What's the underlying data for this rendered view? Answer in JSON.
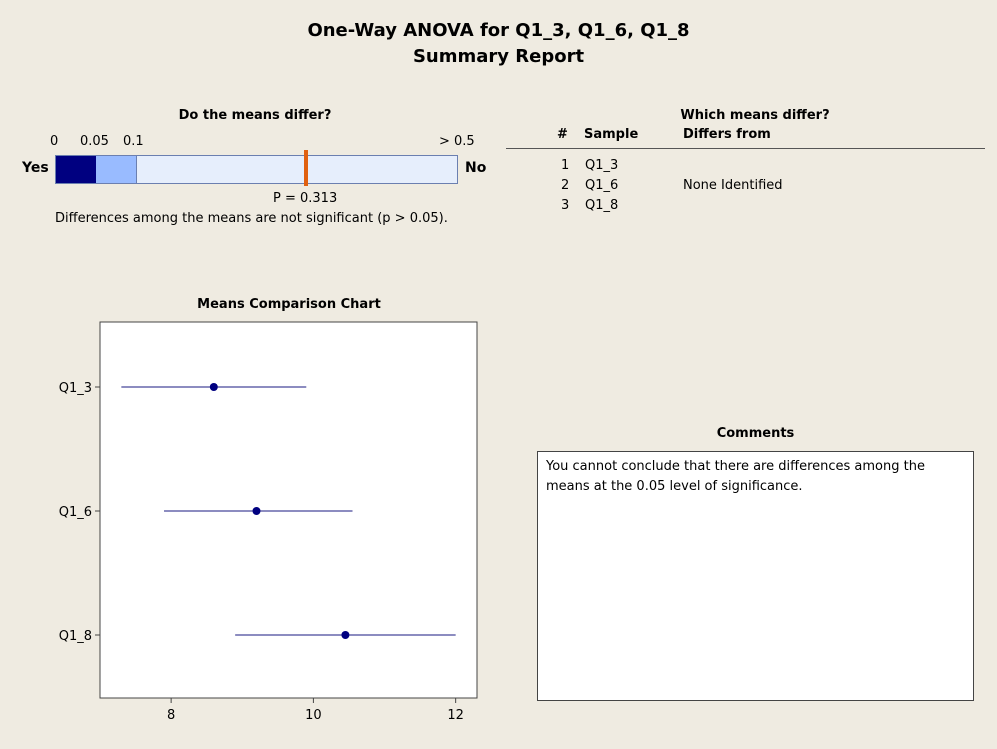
{
  "title": {
    "line1": "One-Way ANOVA for Q1_3, Q1_6, Q1_8",
    "line2": "Summary Report"
  },
  "means_differ": {
    "heading": "Do the means differ?",
    "scale_labels": [
      "0",
      "0.05",
      "0.1",
      "> 0.5"
    ],
    "yes_label": "Yes",
    "no_label": "No",
    "p_label": "P = 0.313",
    "p_value": 0.313,
    "conclusion": "Differences among the means are not significant (p > 0.05).",
    "colors": {
      "dark": "#000080",
      "mid": "#99bbff",
      "light": "#e6eefc",
      "marker": "#e06010"
    }
  },
  "which_differ": {
    "heading": "Which means differ?",
    "columns": [
      "#",
      "Sample",
      "Differs from"
    ],
    "rows": [
      {
        "num": "1",
        "sample": "Q1_3",
        "differs": ""
      },
      {
        "num": "2",
        "sample": "Q1_6",
        "differs": "None Identified"
      },
      {
        "num": "3",
        "sample": "Q1_8",
        "differs": ""
      }
    ]
  },
  "chart_title": "Means Comparison Chart",
  "chart_data": {
    "type": "scatter",
    "title": "Means Comparison Chart",
    "categories": [
      "Q1_3",
      "Q1_6",
      "Q1_8"
    ],
    "means": [
      8.6,
      9.2,
      10.45
    ],
    "lower": [
      7.3,
      7.9,
      8.9
    ],
    "upper": [
      9.9,
      10.55,
      12.0
    ],
    "x_ticks": [
      8,
      10,
      12
    ],
    "xlim": [
      7.0,
      12.3
    ],
    "color": "#1a1a80"
  },
  "comments": {
    "heading": "Comments",
    "text": "You cannot conclude that there are differences among the means at the 0.05 level of significance."
  }
}
